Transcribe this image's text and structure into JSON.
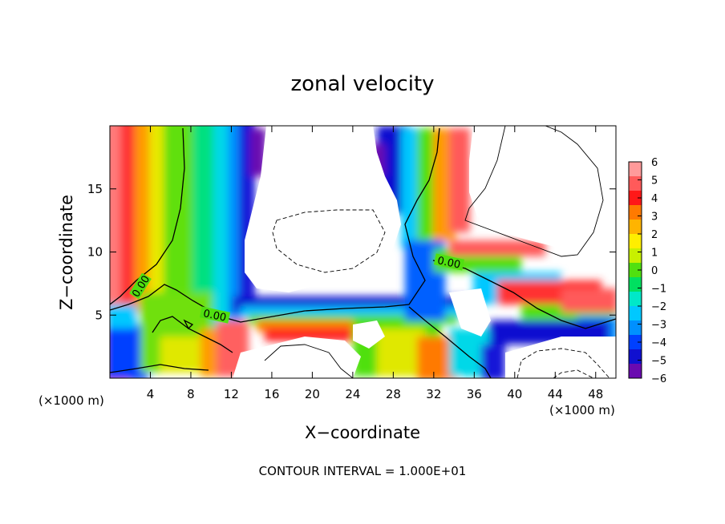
{
  "chart_data": {
    "type": "heatmap",
    "title": "zonal velocity",
    "xlabel": "X−coordinate",
    "ylabel": "Z−coordinate",
    "x_unit_left": "(×1000 m)",
    "x_unit_right": "(×1000 m)",
    "footer": "CONTOUR INTERVAL = 1.000E+01",
    "xlim": [
      0,
      50
    ],
    "ylim": [
      0,
      20
    ],
    "x_ticks": [
      "4",
      "8",
      "12",
      "16",
      "20",
      "24",
      "28",
      "32",
      "36",
      "40",
      "44",
      "48"
    ],
    "y_ticks": [
      "5",
      "10",
      "15"
    ],
    "colorbar": {
      "min": -6,
      "max": 6,
      "labels": [
        "6",
        "5",
        "4",
        "3",
        "2",
        "1",
        "0",
        "−1",
        "−2",
        "−3",
        "−4",
        "−5",
        "−6"
      ],
      "colors": [
        "#ff9a9a",
        "#ff5a5a",
        "#ff1818",
        "#ff7a00",
        "#ffb400",
        "#ffee00",
        "#c8f000",
        "#50e010",
        "#00e060",
        "#00e8c8",
        "#00c8ff",
        "#0090ff",
        "#0040ff",
        "#1010d0",
        "#6a0ab0"
      ]
    },
    "contour_labels": [
      "0.00",
      "0.00",
      "0.00"
    ]
  }
}
